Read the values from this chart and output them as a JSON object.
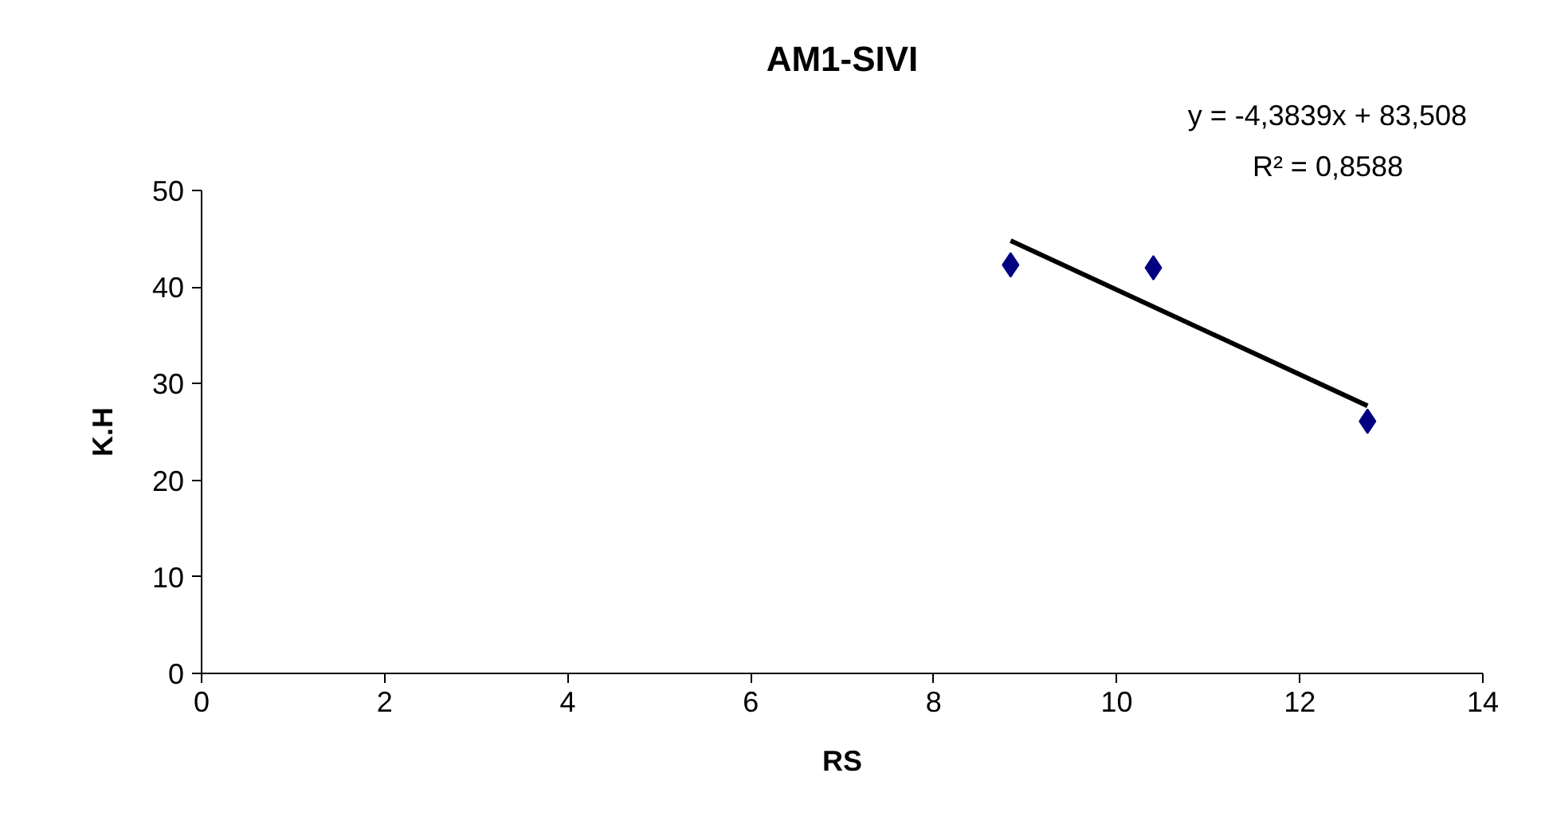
{
  "chart_data": {
    "type": "scatter",
    "title": "AM1-SIVI",
    "xlabel": "RS",
    "ylabel": "K.H",
    "annotations": [
      "y = -4,3839x + 83,508",
      "R² = 0,8588"
    ],
    "series": [
      {
        "type": "scatter",
        "color": "#000080",
        "marker": "diamond",
        "x": [
          8.84,
          10.4,
          12.74
        ],
        "values": [
          42.3,
          42.0,
          26.1
        ]
      },
      {
        "type": "line",
        "color": "#000000",
        "marker": "none",
        "line_style": "solid",
        "x": [
          8.84,
          12.74
        ],
        "values": [
          44.8,
          27.7
        ]
      }
    ],
    "xlim": [
      0,
      14
    ],
    "xticks": [
      0,
      2,
      4,
      6,
      8,
      10,
      12,
      14
    ],
    "ylim": [
      0,
      50
    ],
    "yticks": [
      0,
      10,
      20,
      30,
      40,
      50
    ],
    "grid": false
  }
}
